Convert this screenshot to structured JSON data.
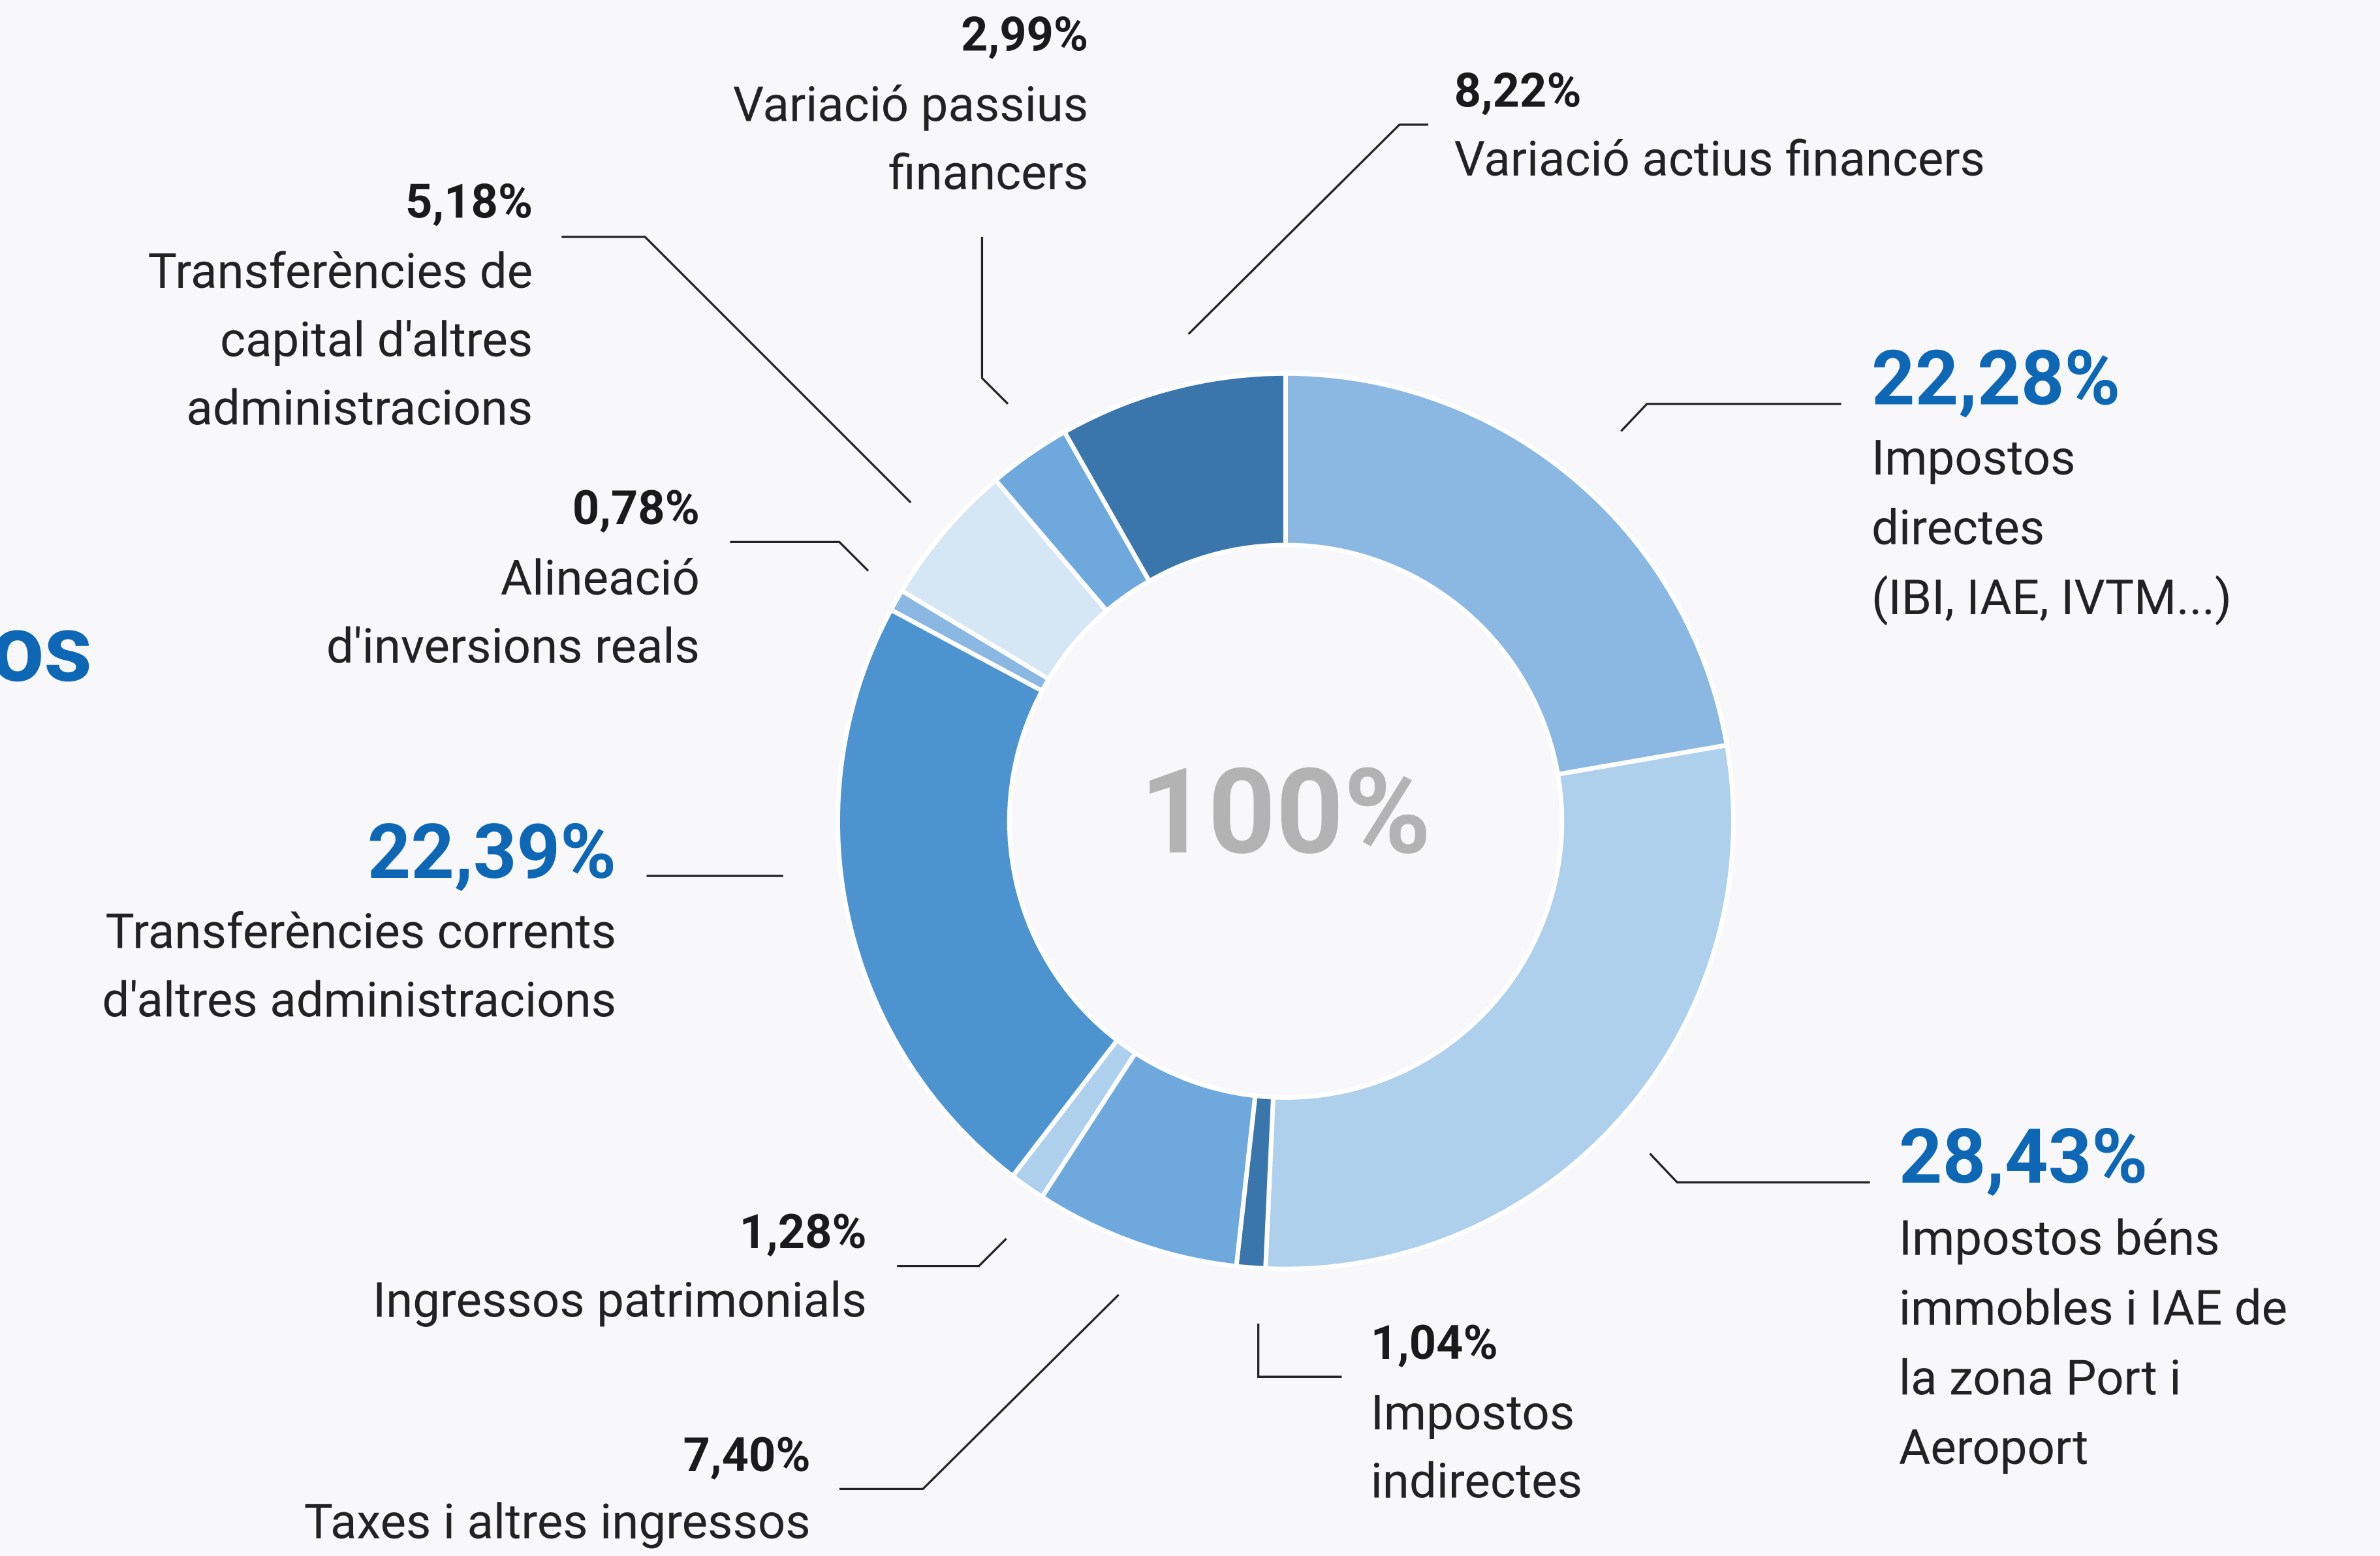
{
  "chart_data": {
    "type": "donut",
    "title": "os",
    "center_label": "100%",
    "categories": [
      "Impostos directes (IBI, IAE, IVTM...)",
      "Impostos béns immobles i IAE de la zona Port i Aeroport",
      "Impostos indirectes",
      "Taxes i altres ingressos",
      "Ingressos patrimonials",
      "Transferències corrents d'altres administracions",
      "Alineació d'inversions reals",
      "Transferències de capital d'altres administracions",
      "Variació passius financers",
      "Variació actius financers"
    ],
    "values": [
      22.28,
      28.43,
      1.04,
      7.4,
      1.28,
      22.39,
      0.78,
      5.18,
      2.99,
      8.22
    ],
    "value_labels": [
      "22,28%",
      "28,43%",
      "1,04%",
      "7,40%",
      "1,28%",
      "22,39%",
      "0,78%",
      "5,18%",
      "2,99%",
      "8,22%"
    ],
    "colors": [
      "#8ab8e3",
      "#aed0ec",
      "#3a76ab",
      "#6ea8dd",
      "#aed0ec",
      "#4d93cf",
      "#8ab8e3",
      "#d5e6f5",
      "#6ea8dd",
      "#3a76ab"
    ]
  }
}
